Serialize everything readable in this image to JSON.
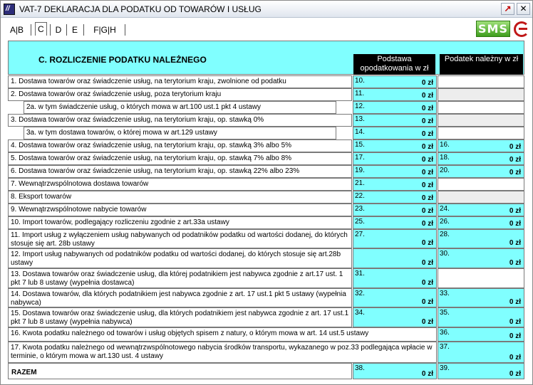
{
  "window": {
    "title": "VAT-7 DEKLARACJA DLA PODATKU OD TOWARÓW I USŁUG",
    "stat_button": "↗",
    "close_button": "✕"
  },
  "tabs": {
    "ab": "A|B",
    "c": "C",
    "d": "D",
    "e": "E",
    "fgh": "F|G|H",
    "selected": "C"
  },
  "toolbar": {
    "sms_label": "SMS"
  },
  "section": {
    "title": "C. ROZLICZENIE PODATKU NALEŻNEGO",
    "col1_header": "Podstawa opodatkowania w zł",
    "col2_header": "Podatek należny w zł"
  },
  "rows": [
    {
      "desc": "1. Dostawa towarów oraz świadczenie usług, na terytorium kraju, zwolnione od podatku",
      "n1": "10.",
      "v1": "0 zł"
    },
    {
      "desc": "2. Dostawa towarów oraz świadczenie usług, poza terytorium kraju",
      "n1": "11.",
      "v1": "0 zł"
    },
    {
      "desc": "2a. w tym świadczenie usług, o których mowa w art.100 ust.1 pkt 4 ustawy",
      "n1": "12.",
      "v1": "0 zł"
    },
    {
      "desc": "3. Dostawa towarów oraz świadczenie usług, na terytorium kraju, op. stawką 0%",
      "n1": "13.",
      "v1": "0 zł"
    },
    {
      "desc": "3a. w tym dostawa towarów, o której mowa w art.129 ustawy",
      "n1": "14.",
      "v1": "0 zł"
    },
    {
      "desc": "4. Dostawa towarów oraz świadczenie usług, na terytorium kraju, op. stawką  3% albo 5%",
      "n1": "15.",
      "v1": "0 zł",
      "n2": "16.",
      "v2": "0 zł"
    },
    {
      "desc": "5. Dostawa towarów oraz świadczenie usług, na terytorium kraju, op. stawką 7% albo 8%",
      "n1": "17.",
      "v1": "0 zł",
      "n2": "18.",
      "v2": "0 zł"
    },
    {
      "desc": "6. Dostawa towarów oraz świadczenie usług, na terytorium kraju, op. stawką 22% albo 23%",
      "n1": "19.",
      "v1": "0 zł",
      "n2": "20.",
      "v2": "0 zł"
    },
    {
      "desc": "7. Wewnątrzwspólnotowa dostawa towarów",
      "n1": "21.",
      "v1": "0 zł"
    },
    {
      "desc": "8. Eksport towarów",
      "n1": "22.",
      "v1": "0 zł"
    },
    {
      "desc": "9. Wewnątrzwspólnotowe nabycie towarów",
      "n1": "23.",
      "v1": "0 zł",
      "n2": "24.",
      "v2": "0 zł"
    },
    {
      "desc": "10. Import towarów, podlegający rozliczeniu zgodnie z art.33a ustawy",
      "n1": "25.",
      "v1": "0 zł",
      "n2": "26.",
      "v2": "0 zł"
    },
    {
      "desc": "11. Import usług z wyłączeniem usług nabywanych od podatników podatku od wartości dodanej, do których stosuje się art. 28b ustawy",
      "n1": "27.",
      "v1": "0 zł",
      "n2": "28.",
      "v2": "0 zł"
    },
    {
      "desc": "12. Import usług nabywanych od podatników podatku od wartości dodanej, do których stosuje się art.28b ustawy",
      "n1": "",
      "v1": "0 zł",
      "n2": "30.",
      "v2": "0 zł"
    },
    {
      "desc": "13. Dostawa towarów oraz świadczenie usług, dla której podatnikiem jest nabywca zgodnie z art.17 ust. 1 pkt 7 lub 8 ustawy (wypełnia dostawca)",
      "n1": "31.",
      "v1": "0 zł"
    },
    {
      "desc": "14. Dostawa towarów, dla których podatnikiem jest nabywca zgodnie z art. 17 ust.1 pkt 5 ustawy (wypełnia nabywca)",
      "n1": "32.",
      "v1": "0 zł",
      "n2": "33.",
      "v2": "0 zł"
    },
    {
      "desc": "15. Dostawa towarów oraz świadczenie usług, dla których podatnikiem jest nabywca zgodnie z art. 17 ust.1 pkt 7 lub 8 ustawy (wypełnia nabywca)",
      "n1": "34.",
      "v1": "0 zł",
      "n2": "35.",
      "v2": "0 zł"
    },
    {
      "desc": "16. Kwota podatku należnego od towarów i usług objętych spisem z natury, o którym mowa w art. 14 ust.5 ustawy",
      "n2": "36.",
      "v2": "0 zł"
    },
    {
      "desc": "17. Kwota podatku należnego od wewnątrzwspólnotowego nabycia środków transportu, wykazanego w poz.33 podlegająca wpłacie w terminie, o którym mowa w art.130 ust. 4 ustawy",
      "n2": "37.",
      "v2": "0 zł"
    }
  ],
  "razem": {
    "label": "RAZEM",
    "n1": "38.",
    "v1": "0 zł",
    "n2": "39.",
    "v2": "0 zł"
  }
}
